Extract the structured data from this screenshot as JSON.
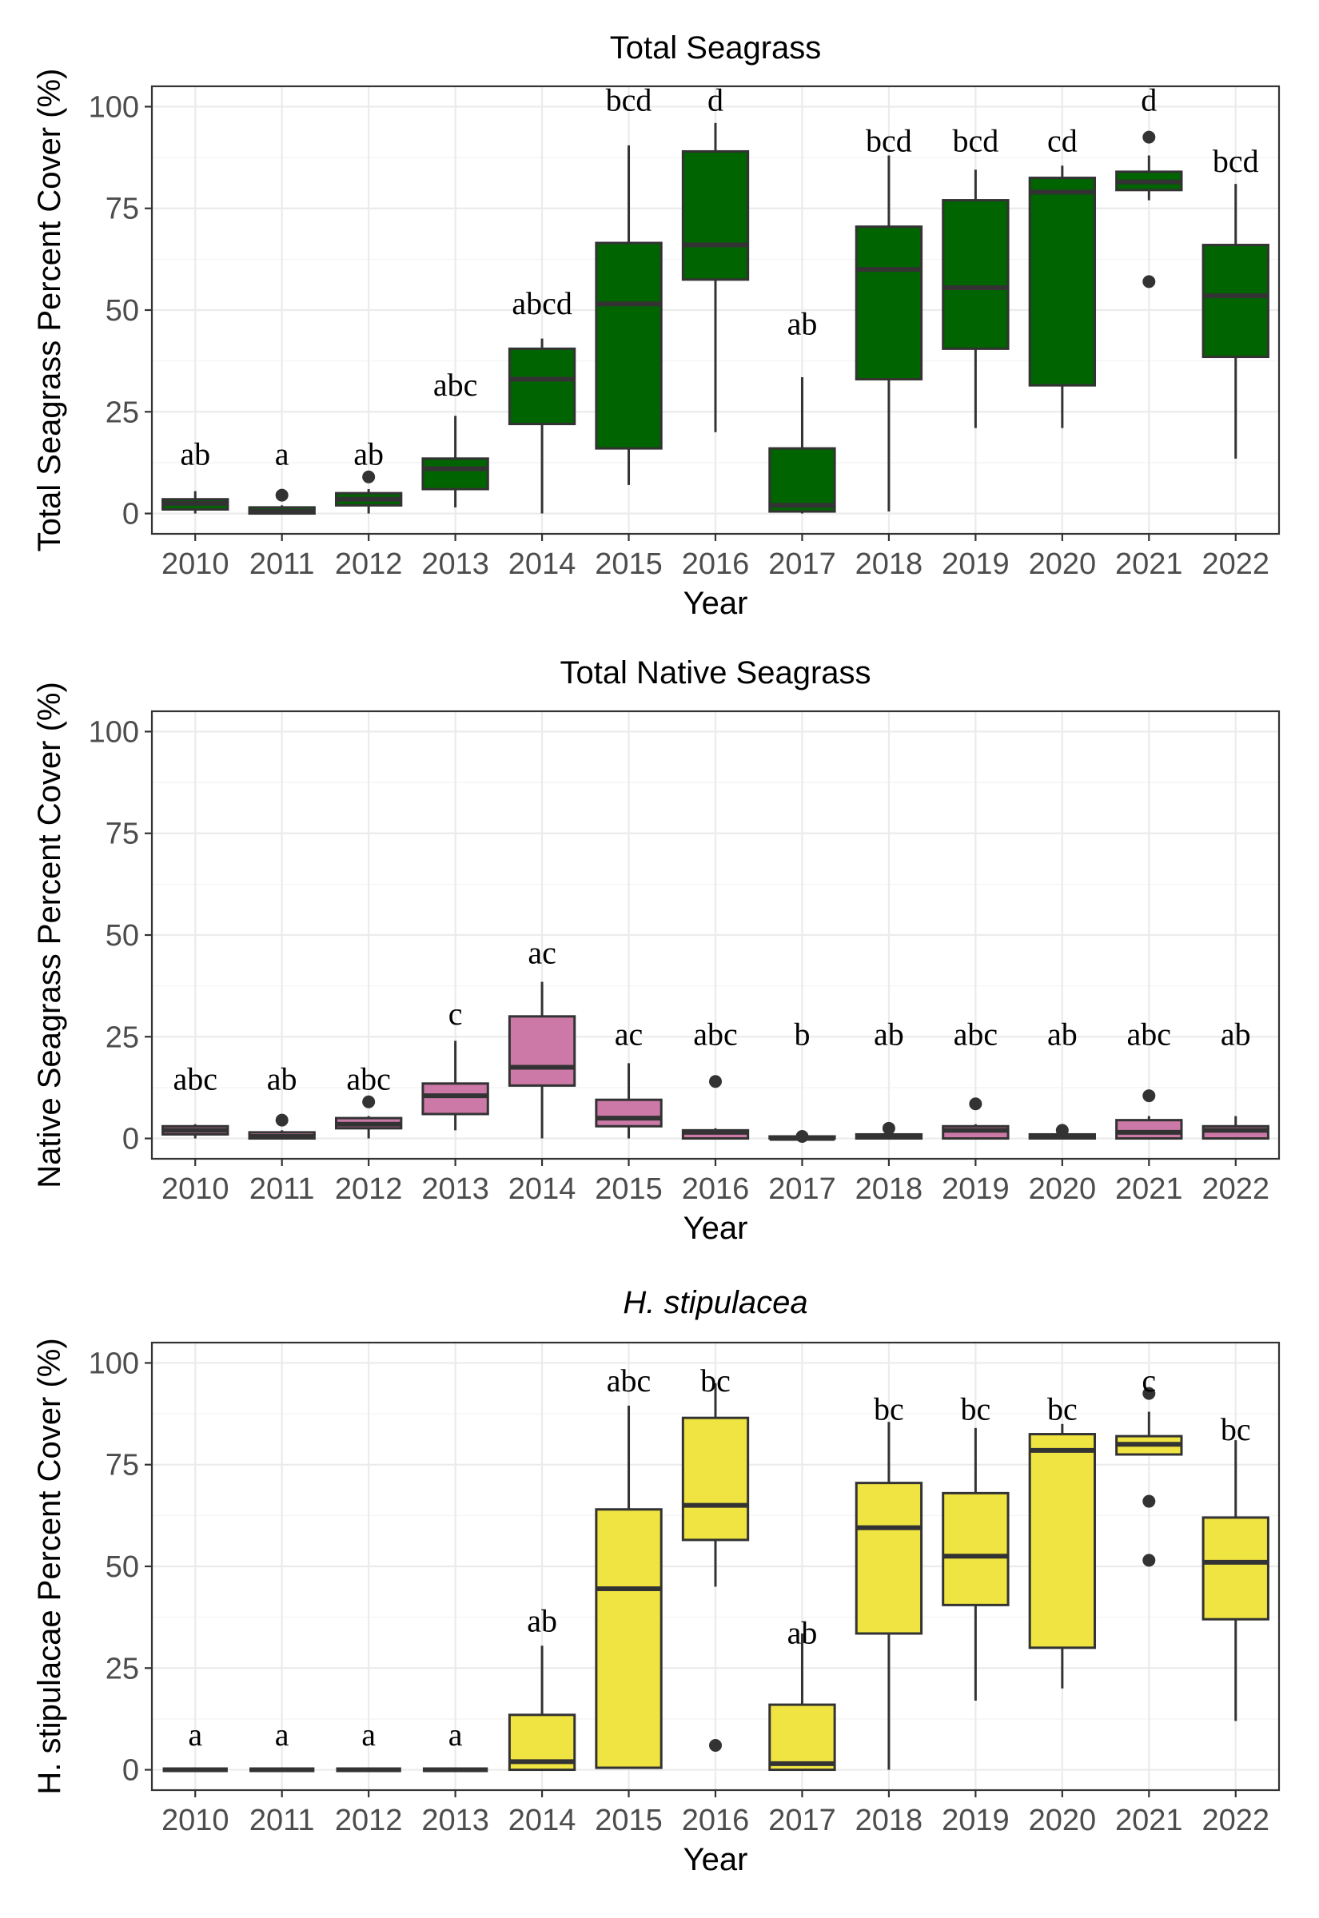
{
  "chart_data": [
    {
      "type": "box",
      "title": "Total Seagrass",
      "xlabel": "Year",
      "ylabel": "Total Seagrass Percent Cover (%)",
      "ylim": [
        -5,
        105
      ],
      "yticks": [
        0,
        25,
        50,
        75,
        100
      ],
      "fill": "#006400",
      "categories": [
        "2010",
        "2011",
        "2012",
        "2013",
        "2014",
        "2015",
        "2016",
        "2017",
        "2018",
        "2019",
        "2020",
        "2021",
        "2022"
      ],
      "boxes": [
        {
          "min": 0,
          "q1": 1,
          "median": 2.5,
          "q3": 3.5,
          "max": 5.5,
          "outliers": []
        },
        {
          "min": 0,
          "q1": 0,
          "median": 0.5,
          "q3": 1.5,
          "max": 2,
          "outliers": [
            4.5
          ]
        },
        {
          "min": 0,
          "q1": 2,
          "median": 3.5,
          "q3": 5,
          "max": 6,
          "outliers": [
            9
          ]
        },
        {
          "min": 1.5,
          "q1": 6,
          "median": 11,
          "q3": 13.5,
          "max": 24,
          "outliers": []
        },
        {
          "min": 0,
          "q1": 22,
          "median": 33,
          "q3": 40.5,
          "max": 43,
          "outliers": []
        },
        {
          "min": 7,
          "q1": 16,
          "median": 51.5,
          "q3": 66.5,
          "max": 90.5,
          "outliers": []
        },
        {
          "min": 20,
          "q1": 57.5,
          "median": 66,
          "q3": 89,
          "max": 96,
          "outliers": []
        },
        {
          "min": 0,
          "q1": 0.5,
          "median": 2,
          "q3": 16,
          "max": 33.5,
          "outliers": []
        },
        {
          "min": 0.5,
          "q1": 33,
          "median": 60,
          "q3": 70.5,
          "max": 88,
          "outliers": []
        },
        {
          "min": 21,
          "q1": 40.5,
          "median": 55.5,
          "q3": 77,
          "max": 84.5,
          "outliers": []
        },
        {
          "min": 21,
          "q1": 31.5,
          "median": 79,
          "q3": 82.5,
          "max": 85.5,
          "outliers": []
        },
        {
          "min": 77,
          "q1": 79.5,
          "median": 81.5,
          "q3": 84,
          "max": 88,
          "outliers": [
            92.5,
            57
          ]
        },
        {
          "min": 13.5,
          "q1": 38.5,
          "median": 53.5,
          "q3": 66,
          "max": 81,
          "outliers": []
        }
      ],
      "letters": [
        "ab",
        "a",
        "ab",
        "abc",
        "abcd",
        "bcd",
        "d",
        "ab",
        "bcd",
        "bcd",
        "cd",
        "d",
        "bcd"
      ],
      "letter_y": [
        12,
        12,
        12,
        29,
        49,
        99,
        99,
        44,
        89,
        89,
        89,
        99,
        84
      ]
    },
    {
      "type": "box",
      "title": "Total Native Seagrass",
      "xlabel": "Year",
      "ylabel": "Native Seagrass Percent Cover (%)",
      "ylim": [
        -5,
        105
      ],
      "yticks": [
        0,
        25,
        50,
        75,
        100
      ],
      "fill": "#cc79a7",
      "categories": [
        "2010",
        "2011",
        "2012",
        "2013",
        "2014",
        "2015",
        "2016",
        "2017",
        "2018",
        "2019",
        "2020",
        "2021",
        "2022"
      ],
      "boxes": [
        {
          "min": 0,
          "q1": 1,
          "median": 2,
          "q3": 3,
          "max": 3.5,
          "outliers": []
        },
        {
          "min": 0,
          "q1": 0,
          "median": 0.5,
          "q3": 1.5,
          "max": 2,
          "outliers": [
            4.5
          ]
        },
        {
          "min": 0,
          "q1": 2.5,
          "median": 3.5,
          "q3": 5,
          "max": 5.5,
          "outliers": [
            9
          ]
        },
        {
          "min": 2,
          "q1": 6,
          "median": 10.5,
          "q3": 13.5,
          "max": 24,
          "outliers": []
        },
        {
          "min": 0,
          "q1": 13,
          "median": 17.5,
          "q3": 30,
          "max": 38.5,
          "outliers": []
        },
        {
          "min": 0,
          "q1": 3,
          "median": 5,
          "q3": 9.5,
          "max": 18.5,
          "outliers": []
        },
        {
          "min": 0,
          "q1": 0,
          "median": 1.5,
          "q3": 2,
          "max": 2.5,
          "outliers": [
            14
          ]
        },
        {
          "min": 0,
          "q1": 0,
          "median": 0,
          "q3": 0.5,
          "max": 0.5,
          "outliers": [
            0.5
          ]
        },
        {
          "min": 0,
          "q1": 0,
          "median": 0.5,
          "q3": 1,
          "max": 1.5,
          "outliers": [
            2.5
          ]
        },
        {
          "min": 0,
          "q1": 0,
          "median": 2,
          "q3": 3,
          "max": 3.5,
          "outliers": [
            8.5
          ]
        },
        {
          "min": 0,
          "q1": 0,
          "median": 0.5,
          "q3": 1,
          "max": 1.5,
          "outliers": [
            2
          ]
        },
        {
          "min": 0,
          "q1": 0,
          "median": 1.5,
          "q3": 4.5,
          "max": 5.5,
          "outliers": [
            10.5
          ]
        },
        {
          "min": 0,
          "q1": 0,
          "median": 2,
          "q3": 3,
          "max": 5.5,
          "outliers": []
        }
      ],
      "letters": [
        "abc",
        "ab",
        "abc",
        "c",
        "ac",
        "ac",
        "abc",
        "b",
        "ab",
        "abc",
        "ab",
        "abc",
        "ab"
      ],
      "letter_y": [
        12,
        12,
        12,
        28,
        43,
        23,
        23,
        23,
        23,
        23,
        23,
        23,
        23
      ]
    },
    {
      "type": "box",
      "title": "H. stipulacea",
      "xlabel": "Year",
      "ylabel": "H. stipulacae Percent Cover (%)",
      "ylim": [
        -5,
        105
      ],
      "yticks": [
        0,
        25,
        50,
        75,
        100
      ],
      "fill": "#f0e442",
      "categories": [
        "2010",
        "2011",
        "2012",
        "2013",
        "2014",
        "2015",
        "2016",
        "2017",
        "2018",
        "2019",
        "2020",
        "2021",
        "2022"
      ],
      "boxes": [
        {
          "min": 0,
          "q1": 0,
          "median": 0,
          "q3": 0,
          "max": 0,
          "outliers": []
        },
        {
          "min": 0,
          "q1": 0,
          "median": 0,
          "q3": 0,
          "max": 0,
          "outliers": []
        },
        {
          "min": 0,
          "q1": 0,
          "median": 0,
          "q3": 0,
          "max": 0,
          "outliers": []
        },
        {
          "min": 0,
          "q1": 0,
          "median": 0,
          "q3": 0,
          "max": 0,
          "outliers": []
        },
        {
          "min": 0,
          "q1": 0,
          "median": 2,
          "q3": 13.5,
          "max": 30.5,
          "outliers": []
        },
        {
          "min": 0.5,
          "q1": 0.5,
          "median": 44.5,
          "q3": 64,
          "max": 89.5,
          "outliers": []
        },
        {
          "min": 45,
          "q1": 56.5,
          "median": 65,
          "q3": 86.5,
          "max": 95,
          "outliers": [
            6
          ]
        },
        {
          "min": 0,
          "q1": 0,
          "median": 1.5,
          "q3": 16,
          "max": 33.5,
          "outliers": []
        },
        {
          "min": 0,
          "q1": 33.5,
          "median": 59.5,
          "q3": 70.5,
          "max": 85.5,
          "outliers": []
        },
        {
          "min": 17,
          "q1": 40.5,
          "median": 52.5,
          "q3": 68,
          "max": 84,
          "outliers": []
        },
        {
          "min": 20,
          "q1": 30,
          "median": 78.5,
          "q3": 82.5,
          "max": 85,
          "outliers": []
        },
        {
          "min": 77.5,
          "q1": 77.5,
          "median": 80,
          "q3": 82,
          "max": 88,
          "outliers": [
            92.5,
            66,
            51.5
          ]
        },
        {
          "min": 12,
          "q1": 37,
          "median": 51,
          "q3": 62,
          "max": 81,
          "outliers": []
        }
      ],
      "letters": [
        "a",
        "a",
        "a",
        "a",
        "ab",
        "abc",
        "bc",
        "ab",
        "bc",
        "bc",
        "bc",
        "c",
        "bc"
      ],
      "letter_y": [
        6,
        6,
        6,
        6,
        34,
        93,
        93,
        31,
        86,
        86,
        86,
        93,
        81
      ]
    }
  ]
}
